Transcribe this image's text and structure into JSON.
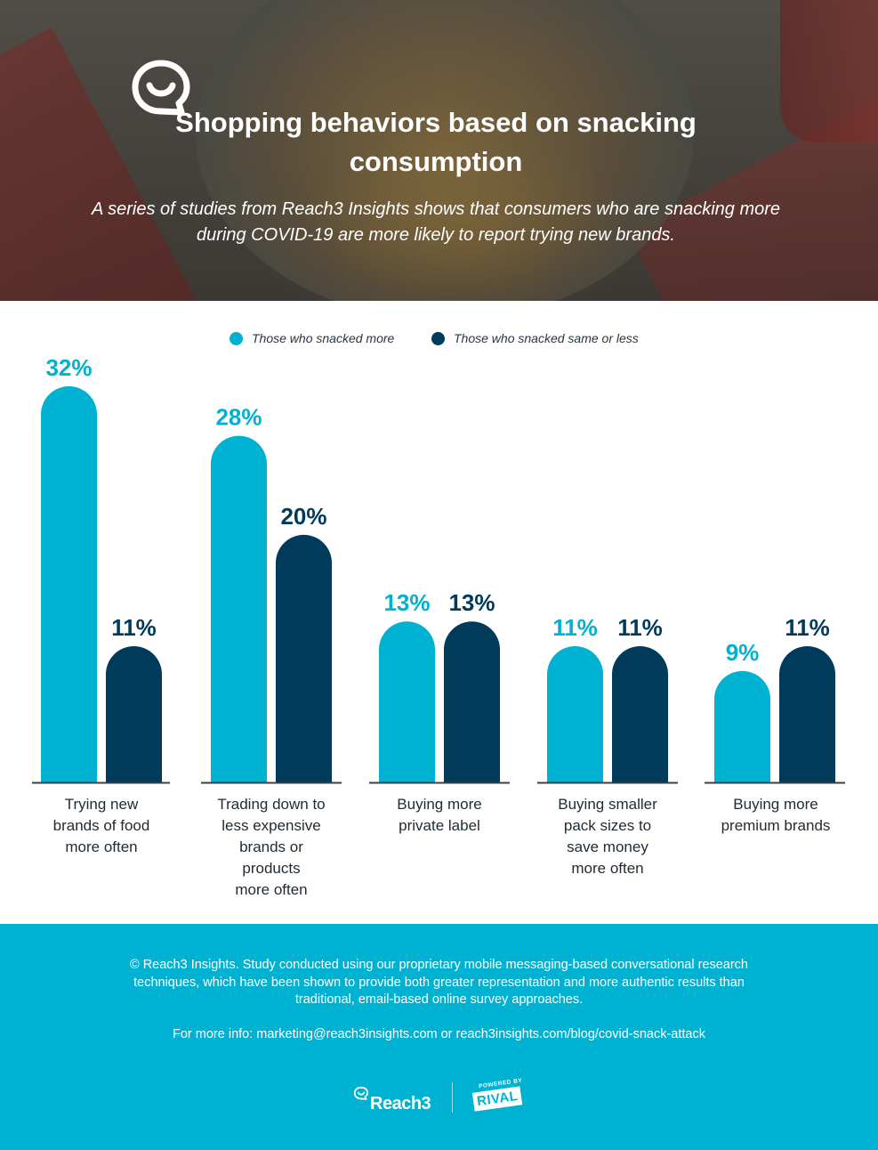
{
  "header": {
    "title": "Shopping behaviors based on snacking consumption",
    "subtitle": "A series of studies from Reach3 Insights shows that consumers who are snacking more during COVID-19 are more likely to report trying new brands.",
    "logo_icon": "chat-bubble-smile-icon"
  },
  "colors": {
    "snacked_more": "#00b2d1",
    "snacked_same_or_less": "#003b5c",
    "footer_bg": "#00b2d1"
  },
  "legend": {
    "items": [
      {
        "label": "Those who snacked more",
        "color": "#00b2d1"
      },
      {
        "label": "Those who snacked same or less",
        "color": "#003b5c"
      }
    ],
    "placement": "top-center"
  },
  "chart_data": {
    "type": "bar",
    "title": "",
    "xlabel": "",
    "ylabel": "",
    "ylim": [
      0,
      32
    ],
    "grid": false,
    "legend": "top-center",
    "categories": [
      "Trying new\nbrands of food\nmore often",
      "Trading down to\nless expensive\nbrands or\nproducts\nmore often",
      "Buying more\nprivate label",
      "Buying smaller\npack sizes to\nsave money\nmore often",
      "Buying more\npremium brands"
    ],
    "series": [
      {
        "name": "Those who snacked more",
        "color": "#00b2d1",
        "values": [
          32,
          28,
          13,
          11,
          9
        ],
        "labels": [
          "32%",
          "28%",
          "13%",
          "11%",
          "9%"
        ]
      },
      {
        "name": "Those who snacked same or less",
        "color": "#003b5c",
        "values": [
          11,
          20,
          13,
          11,
          11
        ],
        "labels": [
          "11%",
          "20%",
          "13%",
          "11%",
          "11%"
        ]
      }
    ]
  },
  "footer": {
    "note": "© Reach3 Insights. Study conducted using our proprietary mobile messaging-based conversational research techniques, which have been shown to provide both greater representation and more authentic results than traditional, email-based online survey approaches.",
    "info": "For more info: marketing@reach3insights.com or reach3insights.com/blog/covid-snack-attack",
    "brand_reach3": "Reach3",
    "brand_powered_by": "POWERED BY",
    "brand_rival": "RIVAL"
  }
}
